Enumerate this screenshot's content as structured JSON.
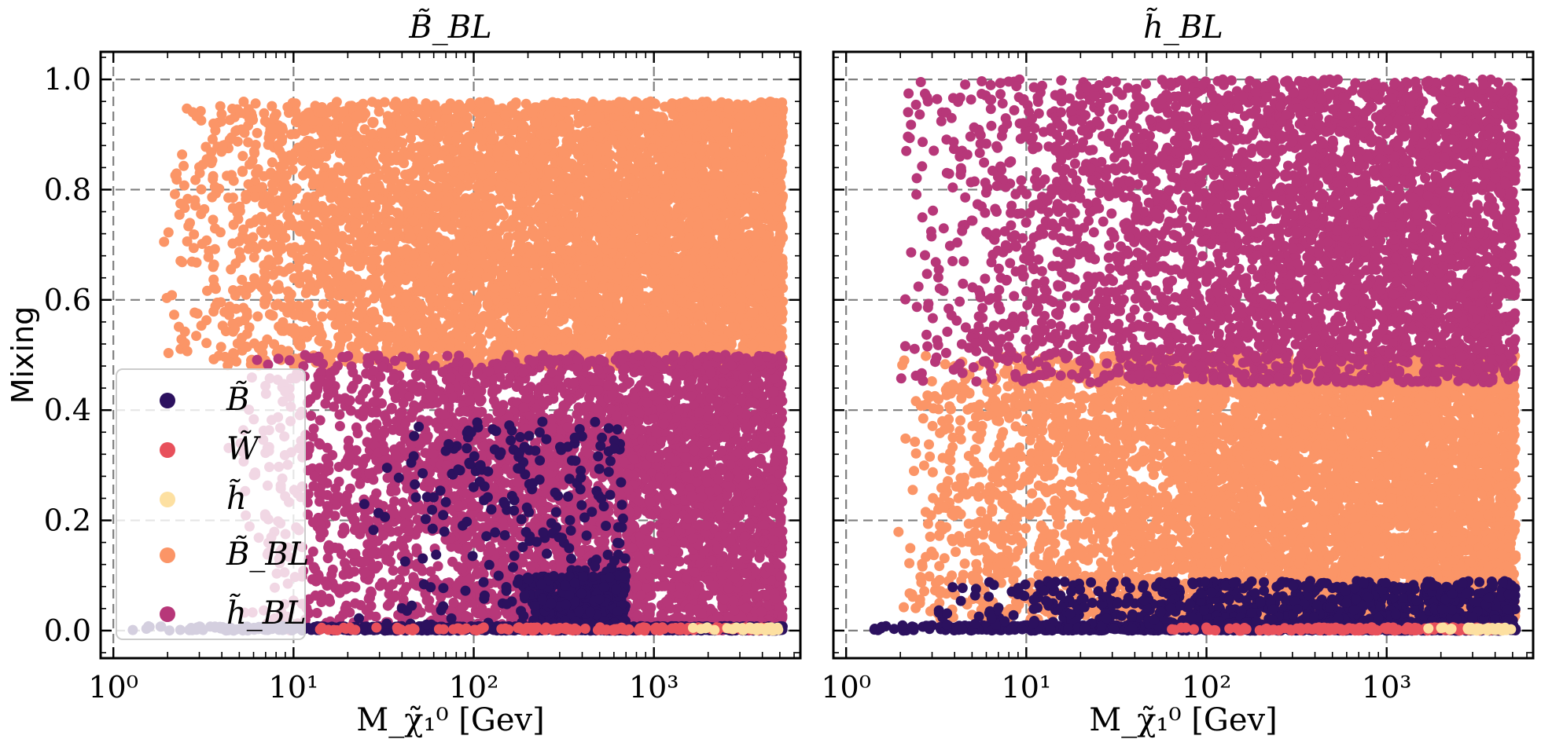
{
  "figure": {
    "ylabel": "Mixing",
    "legend": {
      "position": "lower-left of left panel",
      "entries": [
        {
          "key": "B",
          "label": "B̃",
          "color": "#2c115f"
        },
        {
          "key": "W",
          "label": "W̃",
          "color": "#e8505b"
        },
        {
          "key": "h",
          "label": "h̃",
          "color": "#fde0a1"
        },
        {
          "key": "BBL",
          "label": "B̃_BL",
          "color": "#fb9567"
        },
        {
          "key": "hBL",
          "label": "h̃_BL",
          "color": "#b73779"
        }
      ]
    }
  },
  "chart_data": [
    {
      "type": "scatter",
      "title": "B̃_BL",
      "xlabel": "M_χ̃₁⁰ [Gev]",
      "ylabel": "Mixing",
      "xscale": "log",
      "xlim": [
        0.85,
        6500
      ],
      "ylim": [
        -0.05,
        1.05
      ],
      "xticks": [
        1,
        10,
        100,
        1000
      ],
      "xtick_labels": [
        "10⁰",
        "10¹",
        "10²",
        "10³"
      ],
      "yticks": [
        0.0,
        0.2,
        0.4,
        0.6,
        0.8,
        1.0
      ],
      "ytick_labels": [
        "0.0",
        "0.2",
        "0.4",
        "0.6",
        "0.8",
        "1.0"
      ],
      "grid": true,
      "series": [
        {
          "name": "B̃",
          "color": "#2c115f",
          "regions": [
            {
              "x": [
                1.2,
                5200
              ],
              "y": [
                0.0,
                0.008
              ],
              "n": 900
            },
            {
              "x": [
                20,
                700
              ],
              "y": [
                0.0,
                0.38
              ],
              "n": 260
            },
            {
              "x": [
                180,
                700
              ],
              "y": [
                0.0,
                0.1
              ],
              "n": 500
            }
          ]
        },
        {
          "name": "W̃",
          "color": "#e8505b",
          "regions": [
            {
              "x": [
                10,
                4500
              ],
              "y": [
                0.0,
                0.006
              ],
              "n": 160
            }
          ]
        },
        {
          "name": "h̃",
          "color": "#fde0a1",
          "regions": [
            {
              "x": [
                1500,
                5000
              ],
              "y": [
                0.0,
                0.006
              ],
              "n": 40
            }
          ]
        },
        {
          "name": "B̃_BL",
          "color": "#fb9567",
          "regions": [
            {
              "x": [
                1.8,
                5200
              ],
              "y": [
                0.48,
                0.96
              ],
              "n": 6500
            }
          ]
        },
        {
          "name": "h̃_BL",
          "color": "#b73779",
          "regions": [
            {
              "x": [
                4,
                5200
              ],
              "y": [
                0.0,
                0.5
              ],
              "n": 4200
            }
          ]
        }
      ]
    },
    {
      "type": "scatter",
      "title": "h̃_BL",
      "xlabel": "M_χ̃₁⁰ [Gev]",
      "ylabel": "",
      "xscale": "log",
      "xlim": [
        0.85,
        6500
      ],
      "ylim": [
        -0.05,
        1.05
      ],
      "xticks": [
        1,
        10,
        100,
        1000
      ],
      "xtick_labels": [
        "10⁰",
        "10¹",
        "10²",
        "10³"
      ],
      "yticks": [
        0.0,
        0.2,
        0.4,
        0.6,
        0.8,
        1.0
      ],
      "ytick_labels": [
        "",
        "",
        "",
        "",
        "",
        ""
      ],
      "grid": true,
      "series": [
        {
          "name": "B̃",
          "color": "#2c115f",
          "regions": [
            {
              "x": [
                1.2,
                5200
              ],
              "y": [
                0.0,
                0.01
              ],
              "n": 1100
            },
            {
              "x": [
                3,
                5200
              ],
              "y": [
                0.0,
                0.09
              ],
              "n": 900
            }
          ]
        },
        {
          "name": "W̃",
          "color": "#e8505b",
          "regions": [
            {
              "x": [
                50,
                4500
              ],
              "y": [
                0.0,
                0.006
              ],
              "n": 160
            }
          ]
        },
        {
          "name": "h̃",
          "color": "#fde0a1",
          "regions": [
            {
              "x": [
                1500,
                5000
              ],
              "y": [
                0.0,
                0.006
              ],
              "n": 40
            }
          ]
        },
        {
          "name": "B̃_BL",
          "color": "#fb9567",
          "regions": [
            {
              "x": [
                1.8,
                5200
              ],
              "y": [
                0.02,
                0.5
              ],
              "n": 6500
            }
          ]
        },
        {
          "name": "h̃_BL",
          "color": "#b73779",
          "regions": [
            {
              "x": [
                1.8,
                5200
              ],
              "y": [
                0.45,
                1.0
              ],
              "n": 4200
            }
          ]
        }
      ]
    }
  ]
}
